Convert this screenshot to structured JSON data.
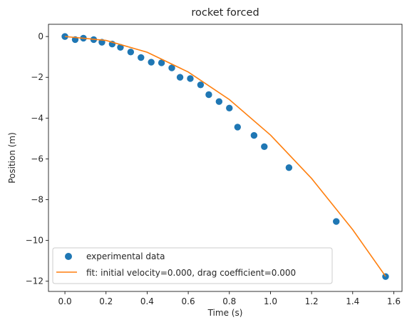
{
  "chart_data": {
    "type": "scatter",
    "title": "rocket forced",
    "xlabel": "Time (s)",
    "ylabel": "Position (m)",
    "xlim": [
      -0.08,
      1.64
    ],
    "ylim": [
      -12.5,
      0.6
    ],
    "xticks": [
      0.0,
      0.2,
      0.4,
      0.6,
      0.8,
      1.0,
      1.2,
      1.4,
      1.6
    ],
    "xtick_labels": [
      "0.0",
      "0.2",
      "0.4",
      "0.6",
      "0.8",
      "1.0",
      "1.2",
      "1.4",
      "1.6"
    ],
    "yticks": [
      0,
      -2,
      -4,
      -6,
      -8,
      -10,
      -12
    ],
    "ytick_labels": [
      "0",
      "−2",
      "−4",
      "−6",
      "−8",
      "−10",
      "−12"
    ],
    "grid": false,
    "legend_position": "lower-left",
    "series": [
      {
        "name": "experimental data",
        "kind": "scatter",
        "color": "#1f77b4",
        "x": [
          0.0,
          0.05,
          0.09,
          0.14,
          0.18,
          0.23,
          0.27,
          0.32,
          0.37,
          0.42,
          0.47,
          0.52,
          0.56,
          0.61,
          0.66,
          0.7,
          0.75,
          0.8,
          0.84,
          0.92,
          0.97,
          1.09,
          1.32,
          1.56
        ],
        "y": [
          0.0,
          -0.15,
          -0.08,
          -0.15,
          -0.28,
          -0.37,
          -0.53,
          -0.76,
          -1.03,
          -1.26,
          -1.29,
          -1.54,
          -2.0,
          -2.06,
          -2.37,
          -2.85,
          -3.19,
          -3.51,
          -4.44,
          -4.85,
          -5.4,
          -6.43,
          -9.07,
          -11.77
        ]
      },
      {
        "name": "fit: initial velocity=0.000, drag coefficient=0.000",
        "kind": "line",
        "color": "#ff7f0e",
        "x": [
          0.0,
          0.2,
          0.4,
          0.6,
          0.8,
          1.0,
          1.2,
          1.4,
          1.56
        ],
        "y": [
          0.0,
          -0.19,
          -0.77,
          -1.74,
          -3.09,
          -4.83,
          -6.96,
          -9.47,
          -11.76
        ]
      }
    ]
  }
}
